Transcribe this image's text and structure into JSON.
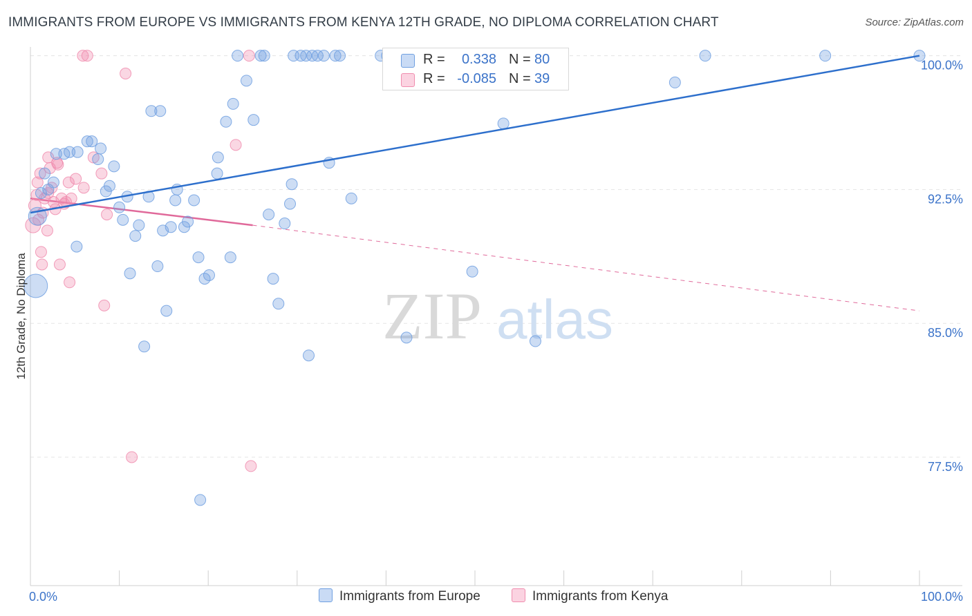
{
  "title": "IMMIGRANTS FROM EUROPE VS IMMIGRANTS FROM KENYA 12TH GRADE, NO DIPLOMA CORRELATION CHART",
  "source": "Source: ZipAtlas.com",
  "watermark": {
    "zip": "ZIP",
    "atlas": "atlas"
  },
  "legend": {
    "rows": [
      {
        "r_label": "R =",
        "r_value": "0.338",
        "n_label": "N =",
        "n_value": "80"
      },
      {
        "r_label": "R =",
        "r_value": "-0.085",
        "n_label": "N =",
        "n_value": "39"
      }
    ]
  },
  "chart_data": {
    "type": "scatter",
    "title": "IMMIGRANTS FROM EUROPE VS IMMIGRANTS FROM KENYA 12TH GRADE, NO DIPLOMA CORRELATION CHART",
    "xlabel": "",
    "ylabel": "12th Grade, No Diploma",
    "xlim": [
      0,
      100
    ],
    "ylim": [
      70.3,
      100.8
    ],
    "x_tick_labels": [
      "0.0%",
      "100.0%"
    ],
    "y_ticks": [
      77.5,
      85.0,
      92.5,
      100.0
    ],
    "y_tick_labels": [
      "77.5%",
      "85.0%",
      "92.5%",
      "100.0%"
    ],
    "grid": true,
    "colors": {
      "europe": "#6f9fe0",
      "europe_line": "#2d6fcc",
      "kenya": "#f08cae",
      "kenya_line": "#e0699a",
      "tick_label": "#3b73c9"
    },
    "series": [
      {
        "name": "Immigrants from Europe",
        "r": 0.338,
        "n": 80,
        "trend": {
          "x0": 0,
          "y0": 91.2,
          "x1": 100,
          "y1": 100.0
        },
        "points": [
          [
            0.6,
            87.1
          ],
          [
            0.8,
            91.0
          ],
          [
            1.2,
            92.3
          ],
          [
            1.6,
            93.4
          ],
          [
            2.0,
            92.5
          ],
          [
            2.6,
            92.9
          ],
          [
            2.9,
            94.5
          ],
          [
            3.8,
            94.5
          ],
          [
            4.4,
            94.6
          ],
          [
            5.3,
            94.6
          ],
          [
            5.2,
            89.3
          ],
          [
            6.4,
            95.2
          ],
          [
            6.9,
            95.2
          ],
          [
            7.6,
            94.2
          ],
          [
            7.9,
            94.8
          ],
          [
            8.5,
            92.4
          ],
          [
            8.9,
            92.7
          ],
          [
            9.4,
            93.8
          ],
          [
            10.0,
            91.5
          ],
          [
            10.4,
            90.8
          ],
          [
            10.9,
            92.1
          ],
          [
            11.2,
            87.8
          ],
          [
            11.8,
            89.9
          ],
          [
            12.2,
            90.5
          ],
          [
            12.8,
            83.7
          ],
          [
            13.3,
            92.1
          ],
          [
            13.6,
            96.9
          ],
          [
            14.3,
            88.2
          ],
          [
            14.9,
            90.2
          ],
          [
            15.3,
            85.7
          ],
          [
            15.8,
            90.4
          ],
          [
            16.3,
            91.9
          ],
          [
            16.5,
            92.5
          ],
          [
            17.3,
            90.4
          ],
          [
            17.7,
            90.7
          ],
          [
            18.4,
            91.9
          ],
          [
            18.9,
            88.7
          ],
          [
            19.1,
            75.1
          ],
          [
            19.6,
            87.5
          ],
          [
            20.1,
            87.7
          ],
          [
            21.0,
            93.4
          ],
          [
            21.1,
            94.3
          ],
          [
            22.0,
            96.3
          ],
          [
            22.5,
            88.7
          ],
          [
            22.8,
            97.3
          ],
          [
            23.3,
            100.0
          ],
          [
            24.3,
            98.6
          ],
          [
            25.1,
            96.4
          ],
          [
            25.9,
            100.0
          ],
          [
            26.3,
            100.0
          ],
          [
            26.8,
            91.1
          ],
          [
            27.3,
            87.5
          ],
          [
            27.9,
            86.1
          ],
          [
            28.6,
            90.6
          ],
          [
            29.2,
            91.7
          ],
          [
            29.4,
            92.8
          ],
          [
            30.4,
            100.0
          ],
          [
            31.0,
            100.0
          ],
          [
            31.3,
            83.2
          ],
          [
            31.7,
            100.0
          ],
          [
            32.3,
            100.0
          ],
          [
            33.0,
            100.0
          ],
          [
            33.6,
            94.0
          ],
          [
            34.3,
            100.0
          ],
          [
            34.8,
            100.0
          ],
          [
            36.1,
            92.0
          ],
          [
            39.4,
            100.0
          ],
          [
            40.1,
            100.0
          ],
          [
            42.3,
            84.2
          ],
          [
            47.9,
            100.0
          ],
          [
            49.7,
            87.9
          ],
          [
            53.2,
            96.2
          ],
          [
            56.4,
            100.0
          ],
          [
            56.8,
            84.0
          ],
          [
            72.5,
            98.5
          ],
          [
            75.9,
            100.0
          ],
          [
            89.4,
            100.0
          ],
          [
            100.0,
            100.0
          ],
          [
            14.6,
            96.9
          ],
          [
            29.6,
            100.0
          ]
        ],
        "sizes": [
          34,
          26,
          16,
          16,
          16,
          16,
          16,
          16,
          16,
          16,
          16,
          16,
          16,
          16,
          16,
          16,
          16,
          16,
          16,
          16,
          16,
          16,
          16,
          16,
          16,
          16,
          16,
          16,
          16,
          16,
          16,
          16,
          16,
          16,
          16,
          16,
          16,
          16,
          16,
          16,
          16,
          16,
          16,
          16,
          16,
          16,
          16,
          16,
          16,
          16,
          16,
          16,
          16,
          16,
          16,
          16,
          16,
          16,
          16,
          16,
          16,
          16,
          16,
          16,
          16,
          16,
          16,
          16,
          16,
          16,
          16,
          16,
          16,
          16,
          16,
          16,
          16,
          16,
          16,
          16
        ]
      },
      {
        "name": "Immigrants from Kenya",
        "r": -0.085,
        "n": 39,
        "trend": {
          "x0": 0,
          "y0": 92.0,
          "x1": 25,
          "y1": 90.5,
          "dashed_x1": 100,
          "dashed_y1": 85.7
        },
        "points": [
          [
            0.3,
            90.5
          ],
          [
            0.5,
            91.6
          ],
          [
            0.7,
            92.2
          ],
          [
            0.8,
            92.9
          ],
          [
            1.1,
            93.4
          ],
          [
            1.2,
            89.0
          ],
          [
            1.3,
            88.3
          ],
          [
            1.6,
            92.0
          ],
          [
            1.9,
            90.2
          ],
          [
            2.0,
            94.3
          ],
          [
            2.2,
            93.7
          ],
          [
            2.4,
            92.6
          ],
          [
            2.6,
            91.8
          ],
          [
            2.8,
            91.4
          ],
          [
            3.1,
            93.9
          ],
          [
            3.3,
            88.3
          ],
          [
            3.5,
            92.0
          ],
          [
            3.8,
            91.7
          ],
          [
            4.0,
            91.8
          ],
          [
            4.4,
            87.3
          ],
          [
            4.6,
            92.0
          ],
          [
            5.1,
            93.1
          ],
          [
            5.9,
            100.0
          ],
          [
            6.4,
            100.0
          ],
          [
            7.1,
            94.3
          ],
          [
            8.0,
            93.4
          ],
          [
            8.6,
            91.1
          ],
          [
            8.3,
            86.0
          ],
          [
            10.7,
            99.0
          ],
          [
            11.4,
            77.5
          ],
          [
            23.1,
            95.0
          ],
          [
            24.8,
            77.0
          ],
          [
            24.6,
            100.0
          ],
          [
            4.3,
            92.9
          ],
          [
            6.0,
            92.6
          ],
          [
            3.0,
            94.0
          ],
          [
            2.0,
            92.3
          ],
          [
            1.4,
            91.2
          ],
          [
            0.9,
            90.8
          ]
        ],
        "sizes": [
          22,
          18,
          16,
          16,
          16,
          16,
          16,
          16,
          16,
          16,
          16,
          16,
          16,
          16,
          16,
          16,
          16,
          16,
          16,
          16,
          16,
          16,
          16,
          16,
          16,
          16,
          16,
          16,
          16,
          16,
          16,
          16,
          16,
          16,
          16,
          16,
          16,
          16,
          16
        ]
      }
    ]
  }
}
